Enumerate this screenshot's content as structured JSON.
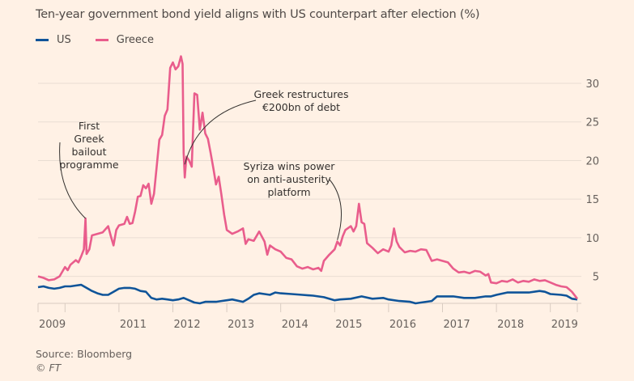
{
  "chart_data": {
    "type": "line",
    "title": "Ten-year government bond yield aligns with US counterpart after election (%)",
    "xlabel": "",
    "ylabel": "",
    "ylim": [
      1.5,
      33
    ],
    "xlim": [
      2009.5,
      2019.5
    ],
    "grid": true,
    "legend_position": "top-left",
    "y_ticks": [
      5,
      10,
      15,
      20,
      25,
      30
    ],
    "x_ticks": [
      {
        "year": 2009.5,
        "label": "2009"
      },
      {
        "year": 2010,
        "label": ""
      },
      {
        "year": 2011,
        "label": "2011"
      },
      {
        "year": 2012,
        "label": "2012"
      },
      {
        "year": 2013,
        "label": "2013"
      },
      {
        "year": 2014,
        "label": "2014"
      },
      {
        "year": 2015,
        "label": "2015"
      },
      {
        "year": 2016,
        "label": "2016"
      },
      {
        "year": 2017,
        "label": "2017"
      },
      {
        "year": 2018,
        "label": "2018"
      },
      {
        "year": 2019,
        "label": "2019"
      },
      {
        "year": 2019.5,
        "label": ""
      }
    ],
    "series": [
      {
        "name": "US",
        "color": "#0f5499",
        "points": [
          [
            2009.5,
            3.6
          ],
          [
            2009.6,
            3.7
          ],
          [
            2009.7,
            3.5
          ],
          [
            2009.8,
            3.4
          ],
          [
            2009.9,
            3.5
          ],
          [
            2010.0,
            3.7
          ],
          [
            2010.1,
            3.7
          ],
          [
            2010.2,
            3.8
          ],
          [
            2010.3,
            3.9
          ],
          [
            2010.4,
            3.5
          ],
          [
            2010.5,
            3.1
          ],
          [
            2010.6,
            2.8
          ],
          [
            2010.7,
            2.6
          ],
          [
            2010.8,
            2.6
          ],
          [
            2010.9,
            3.0
          ],
          [
            2011.0,
            3.4
          ],
          [
            2011.1,
            3.5
          ],
          [
            2011.2,
            3.5
          ],
          [
            2011.3,
            3.4
          ],
          [
            2011.4,
            3.1
          ],
          [
            2011.5,
            3.0
          ],
          [
            2011.6,
            2.2
          ],
          [
            2011.7,
            2.0
          ],
          [
            2011.8,
            2.1
          ],
          [
            2011.9,
            2.0
          ],
          [
            2012.0,
            1.9
          ],
          [
            2012.1,
            2.0
          ],
          [
            2012.2,
            2.2
          ],
          [
            2012.3,
            1.9
          ],
          [
            2012.4,
            1.6
          ],
          [
            2012.5,
            1.5
          ],
          [
            2012.6,
            1.7
          ],
          [
            2012.7,
            1.7
          ],
          [
            2012.8,
            1.7
          ],
          [
            2012.9,
            1.8
          ],
          [
            2013.0,
            1.9
          ],
          [
            2013.1,
            2.0
          ],
          [
            2013.3,
            1.7
          ],
          [
            2013.4,
            2.1
          ],
          [
            2013.5,
            2.6
          ],
          [
            2013.6,
            2.8
          ],
          [
            2013.7,
            2.7
          ],
          [
            2013.8,
            2.6
          ],
          [
            2013.9,
            2.9
          ],
          [
            2014.0,
            2.8
          ],
          [
            2014.2,
            2.7
          ],
          [
            2014.4,
            2.6
          ],
          [
            2014.6,
            2.5
          ],
          [
            2014.8,
            2.3
          ],
          [
            2015.0,
            1.9
          ],
          [
            2015.1,
            2.0
          ],
          [
            2015.3,
            2.1
          ],
          [
            2015.5,
            2.4
          ],
          [
            2015.7,
            2.1
          ],
          [
            2015.9,
            2.2
          ],
          [
            2016.0,
            2.0
          ],
          [
            2016.2,
            1.8
          ],
          [
            2016.4,
            1.7
          ],
          [
            2016.5,
            1.5
          ],
          [
            2016.6,
            1.6
          ],
          [
            2016.8,
            1.8
          ],
          [
            2016.9,
            2.4
          ],
          [
            2017.0,
            2.4
          ],
          [
            2017.2,
            2.4
          ],
          [
            2017.4,
            2.2
          ],
          [
            2017.6,
            2.2
          ],
          [
            2017.8,
            2.4
          ],
          [
            2017.9,
            2.4
          ],
          [
            2018.0,
            2.6
          ],
          [
            2018.2,
            2.9
          ],
          [
            2018.4,
            2.9
          ],
          [
            2018.6,
            2.9
          ],
          [
            2018.8,
            3.1
          ],
          [
            2018.9,
            3.0
          ],
          [
            2019.0,
            2.7
          ],
          [
            2019.2,
            2.6
          ],
          [
            2019.3,
            2.5
          ],
          [
            2019.4,
            2.1
          ],
          [
            2019.5,
            2.0
          ]
        ]
      },
      {
        "name": "Greece",
        "color": "#e95d8c",
        "points": [
          [
            2009.5,
            5.0
          ],
          [
            2009.6,
            4.8
          ],
          [
            2009.7,
            4.5
          ],
          [
            2009.8,
            4.6
          ],
          [
            2009.9,
            5.0
          ],
          [
            2010.0,
            6.2
          ],
          [
            2010.05,
            5.8
          ],
          [
            2010.1,
            6.5
          ],
          [
            2010.2,
            7.1
          ],
          [
            2010.25,
            6.8
          ],
          [
            2010.3,
            7.6
          ],
          [
            2010.35,
            8.5
          ],
          [
            2010.38,
            12.5
          ],
          [
            2010.4,
            7.9
          ],
          [
            2010.45,
            8.5
          ],
          [
            2010.5,
            10.3
          ],
          [
            2010.6,
            10.5
          ],
          [
            2010.7,
            10.7
          ],
          [
            2010.8,
            11.5
          ],
          [
            2010.85,
            10.2
          ],
          [
            2010.9,
            9.0
          ],
          [
            2010.95,
            11.0
          ],
          [
            2011.0,
            11.6
          ],
          [
            2011.1,
            11.8
          ],
          [
            2011.15,
            12.7
          ],
          [
            2011.2,
            11.8
          ],
          [
            2011.25,
            11.9
          ],
          [
            2011.3,
            13.4
          ],
          [
            2011.35,
            15.3
          ],
          [
            2011.4,
            15.4
          ],
          [
            2011.45,
            16.8
          ],
          [
            2011.5,
            16.4
          ],
          [
            2011.55,
            17.0
          ],
          [
            2011.6,
            14.4
          ],
          [
            2011.65,
            15.7
          ],
          [
            2011.7,
            19.2
          ],
          [
            2011.75,
            22.7
          ],
          [
            2011.8,
            23.3
          ],
          [
            2011.85,
            25.8
          ],
          [
            2011.9,
            26.6
          ],
          [
            2011.95,
            32.0
          ],
          [
            2012.0,
            32.7
          ],
          [
            2012.05,
            31.8
          ],
          [
            2012.1,
            32.2
          ],
          [
            2012.15,
            33.5
          ],
          [
            2012.18,
            32.5
          ],
          [
            2012.2,
            21.0
          ],
          [
            2012.22,
            17.8
          ],
          [
            2012.25,
            20.5
          ],
          [
            2012.3,
            20.0
          ],
          [
            2012.35,
            19.2
          ],
          [
            2012.4,
            28.7
          ],
          [
            2012.45,
            28.5
          ],
          [
            2012.5,
            24.0
          ],
          [
            2012.55,
            26.2
          ],
          [
            2012.6,
            23.5
          ],
          [
            2012.65,
            22.8
          ],
          [
            2012.7,
            21.0
          ],
          [
            2012.75,
            19.0
          ],
          [
            2012.8,
            16.9
          ],
          [
            2012.85,
            17.9
          ],
          [
            2012.9,
            15.6
          ],
          [
            2012.95,
            13.0
          ],
          [
            2013.0,
            11.0
          ],
          [
            2013.1,
            10.5
          ],
          [
            2013.2,
            10.8
          ],
          [
            2013.3,
            11.2
          ],
          [
            2013.35,
            9.2
          ],
          [
            2013.4,
            9.8
          ],
          [
            2013.5,
            9.6
          ],
          [
            2013.6,
            10.8
          ],
          [
            2013.7,
            9.5
          ],
          [
            2013.75,
            7.8
          ],
          [
            2013.8,
            9.0
          ],
          [
            2013.9,
            8.5
          ],
          [
            2014.0,
            8.2
          ],
          [
            2014.1,
            7.4
          ],
          [
            2014.2,
            7.2
          ],
          [
            2014.3,
            6.3
          ],
          [
            2014.4,
            6.0
          ],
          [
            2014.5,
            6.2
          ],
          [
            2014.6,
            5.9
          ],
          [
            2014.7,
            6.1
          ],
          [
            2014.75,
            5.7
          ],
          [
            2014.8,
            7.0
          ],
          [
            2014.9,
            7.8
          ],
          [
            2015.0,
            8.5
          ],
          [
            2015.05,
            9.5
          ],
          [
            2015.1,
            9.0
          ],
          [
            2015.15,
            10.2
          ],
          [
            2015.2,
            11.0
          ],
          [
            2015.3,
            11.5
          ],
          [
            2015.35,
            10.8
          ],
          [
            2015.4,
            11.5
          ],
          [
            2015.45,
            14.4
          ],
          [
            2015.5,
            12.0
          ],
          [
            2015.55,
            11.8
          ],
          [
            2015.6,
            9.3
          ],
          [
            2015.7,
            8.7
          ],
          [
            2015.8,
            8.0
          ],
          [
            2015.9,
            8.5
          ],
          [
            2016.0,
            8.2
          ],
          [
            2016.05,
            9.0
          ],
          [
            2016.1,
            11.2
          ],
          [
            2016.15,
            9.5
          ],
          [
            2016.2,
            8.8
          ],
          [
            2016.3,
            8.1
          ],
          [
            2016.4,
            8.3
          ],
          [
            2016.5,
            8.2
          ],
          [
            2016.6,
            8.5
          ],
          [
            2016.7,
            8.4
          ],
          [
            2016.8,
            7.0
          ],
          [
            2016.9,
            7.2
          ],
          [
            2017.0,
            7.0
          ],
          [
            2017.1,
            6.8
          ],
          [
            2017.2,
            6.0
          ],
          [
            2017.3,
            5.5
          ],
          [
            2017.4,
            5.6
          ],
          [
            2017.5,
            5.4
          ],
          [
            2017.6,
            5.7
          ],
          [
            2017.7,
            5.6
          ],
          [
            2017.8,
            5.1
          ],
          [
            2017.85,
            5.3
          ],
          [
            2017.9,
            4.2
          ],
          [
            2018.0,
            4.1
          ],
          [
            2018.1,
            4.4
          ],
          [
            2018.2,
            4.3
          ],
          [
            2018.3,
            4.6
          ],
          [
            2018.4,
            4.2
          ],
          [
            2018.5,
            4.4
          ],
          [
            2018.6,
            4.3
          ],
          [
            2018.7,
            4.6
          ],
          [
            2018.8,
            4.4
          ],
          [
            2018.9,
            4.5
          ],
          [
            2019.0,
            4.2
          ],
          [
            2019.1,
            3.9
          ],
          [
            2019.2,
            3.7
          ],
          [
            2019.3,
            3.6
          ],
          [
            2019.35,
            3.3
          ],
          [
            2019.4,
            3.0
          ],
          [
            2019.5,
            2.1
          ]
        ]
      }
    ],
    "annotations": [
      {
        "id": "first-bailout",
        "lines": [
          "First",
          "Greek",
          "bailout",
          "programme"
        ],
        "target": [
          2010.38,
          12.5
        ]
      },
      {
        "id": "restructure",
        "lines": [
          "Greek restructures",
          "€200bn of debt"
        ],
        "target": [
          2012.22,
          19.5
        ]
      },
      {
        "id": "syriza",
        "lines": [
          "Syriza wins power",
          "on anti-austerity",
          "platform"
        ],
        "target": [
          2015.05,
          9.7
        ]
      }
    ]
  },
  "legend": [
    {
      "label": "US",
      "color": "#0f5499"
    },
    {
      "label": "Greece",
      "color": "#e95d8c"
    }
  ],
  "source": "Source: Bloomberg",
  "copyright": "© FT"
}
